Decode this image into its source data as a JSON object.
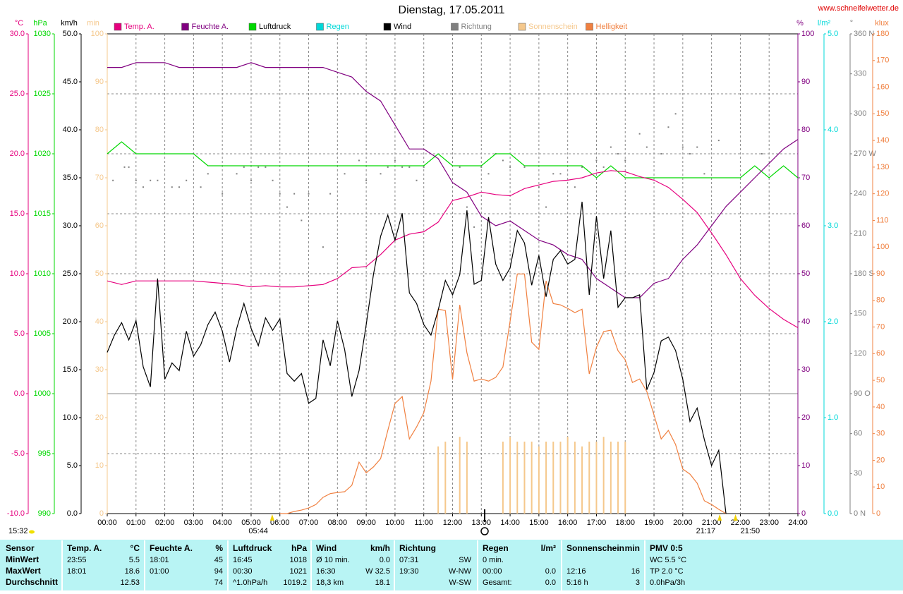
{
  "site": "www.schneifelwetter.de",
  "chart_data": {
    "type": "line",
    "title": "Dienstag, 17.05.2011",
    "grid": true,
    "xlim": [
      0,
      24
    ],
    "xticks": [
      {
        "value": 0,
        "label": "00:00"
      },
      {
        "value": 1,
        "label": "01:00"
      },
      {
        "value": 2,
        "label": "02:00"
      },
      {
        "value": 3,
        "label": "03:00"
      },
      {
        "value": 4,
        "label": "04:00"
      },
      {
        "value": 5,
        "label": "05:00"
      },
      {
        "value": 6,
        "label": "06:00"
      },
      {
        "value": 7,
        "label": "07:00"
      },
      {
        "value": 8,
        "label": "08:00"
      },
      {
        "value": 9,
        "label": "09:00"
      },
      {
        "value": 10,
        "label": "10:00"
      },
      {
        "value": 11,
        "label": "11:00"
      },
      {
        "value": 12,
        "label": "12:00"
      },
      {
        "value": 13,
        "label": "13:00"
      },
      {
        "value": 14,
        "label": "14:00"
      },
      {
        "value": 15,
        "label": "15:00"
      },
      {
        "value": 16,
        "label": "16:00"
      },
      {
        "value": 17,
        "label": "17:00"
      },
      {
        "value": 18,
        "label": "18:00"
      },
      {
        "value": 19,
        "label": "19:00"
      },
      {
        "value": 20,
        "label": "20:00"
      },
      {
        "value": 21,
        "label": "21:00"
      },
      {
        "value": 22,
        "label": "22:00"
      },
      {
        "value": 23,
        "label": "23:00"
      },
      {
        "value": 24,
        "label": "24:00"
      }
    ],
    "x": [
      0,
      0.5,
      1,
      1.5,
      2,
      2.5,
      3,
      3.5,
      4,
      4.5,
      5,
      5.5,
      6,
      6.5,
      7,
      7.5,
      8,
      8.5,
      9,
      9.5,
      10,
      10.5,
      11,
      11.5,
      12,
      12.5,
      13,
      13.5,
      14,
      14.5,
      15,
      15.5,
      16,
      16.5,
      17,
      17.5,
      18,
      18.5,
      19,
      19.5,
      20,
      20.5,
      21,
      21.5,
      22,
      22.5,
      23,
      23.5,
      24
    ],
    "annotations": [
      {
        "x": 5.7333,
        "text": "05:44"
      },
      {
        "x": 21.2833,
        "text": "21:17"
      },
      {
        "x": 21.8333,
        "text": "21:50"
      }
    ],
    "moon_note": "15:32",
    "series": [
      {
        "name": "Temp. A.",
        "type": "line",
        "color": "#e6007e",
        "side": "left",
        "unit": "°C",
        "ylim": [
          -10,
          30
        ],
        "yticks": [
          {
            "value": -10,
            "label": "-10.0"
          },
          {
            "value": -5,
            "label": "-5.0"
          },
          {
            "value": 0,
            "label": "0.0"
          },
          {
            "value": 5,
            "label": "5.0"
          },
          {
            "value": 10,
            "label": "10.0"
          },
          {
            "value": 15,
            "label": "15.0"
          },
          {
            "value": 20,
            "label": "20.0"
          },
          {
            "value": 25,
            "label": "25.0"
          },
          {
            "value": 30,
            "label": "30.0"
          }
        ],
        "values": [
          9.4,
          9.1,
          9.4,
          9.4,
          9.4,
          9.4,
          9.4,
          9.3,
          9.2,
          9.1,
          8.9,
          9.0,
          8.9,
          8.9,
          9.0,
          9.1,
          9.6,
          10.5,
          10.6,
          11.6,
          12.8,
          13.3,
          13.5,
          14.3,
          16.1,
          16.4,
          16.8,
          16.6,
          16.5,
          17.1,
          17.4,
          17.7,
          17.8,
          18.0,
          18.4,
          18.6,
          18.5,
          18.1,
          17.8,
          17.2,
          16.2,
          15.1,
          13.4,
          11.6,
          9.6,
          8.2,
          7.1,
          6.2,
          5.5
        ]
      },
      {
        "name": "Feuchte A.",
        "type": "line",
        "color": "#800080",
        "side": "right",
        "unit": "%",
        "ylim": [
          0,
          100
        ],
        "yticks": [
          0,
          10,
          20,
          30,
          40,
          50,
          60,
          70,
          80,
          90,
          100
        ],
        "values": [
          93,
          93,
          94,
          94,
          94,
          93,
          93,
          93,
          93,
          93,
          94,
          93,
          93,
          93,
          93,
          93,
          92,
          91,
          88,
          86,
          81,
          76,
          76,
          74,
          69,
          67,
          62,
          60,
          61,
          59,
          57,
          56,
          54,
          53,
          49,
          47,
          45,
          45,
          48,
          49,
          53,
          56,
          60,
          64,
          67,
          70,
          73,
          76,
          78
        ]
      },
      {
        "name": "Luftdruck",
        "type": "line",
        "color": "#00d800",
        "side": "left",
        "unit": "hPa",
        "ylim": [
          990,
          1030
        ],
        "yticks": [
          990,
          995,
          1000,
          1005,
          1010,
          1015,
          1020,
          1025,
          1030
        ],
        "values": [
          1020,
          1021,
          1020,
          1020,
          1020,
          1020,
          1020,
          1019,
          1019,
          1019,
          1019,
          1019,
          1019,
          1019,
          1019,
          1019,
          1019,
          1019,
          1019,
          1019,
          1019,
          1019,
          1019,
          1020,
          1019,
          1019,
          1019,
          1020,
          1020,
          1019,
          1019,
          1019,
          1019,
          1019,
          1018,
          1019,
          1018,
          1018,
          1018,
          1018,
          1018,
          1018,
          1018,
          1018,
          1018,
          1019,
          1018,
          1019,
          1018
        ]
      },
      {
        "name": "Regen",
        "type": "bar",
        "color": "#00d8d8",
        "side": "right",
        "unit": "l/m²",
        "ylim": [
          0,
          5
        ],
        "yticks": [
          {
            "value": 0,
            "label": "0.0"
          },
          {
            "value": 1,
            "label": "1.0"
          },
          {
            "value": 2,
            "label": "2.0"
          },
          {
            "value": 3,
            "label": "3.0"
          },
          {
            "value": 4,
            "label": "4.0"
          },
          {
            "value": 5,
            "label": "5.0"
          }
        ],
        "x": [],
        "values": []
      },
      {
        "name": "Wind",
        "type": "line",
        "color": "#000000",
        "side": "left",
        "unit": "km/h",
        "ylim": [
          0,
          50
        ],
        "yticks": [
          {
            "value": 0,
            "label": "0.0"
          },
          {
            "value": 5,
            "label": "5.0"
          },
          {
            "value": 10,
            "label": "10.0"
          },
          {
            "value": 15,
            "label": "15.0"
          },
          {
            "value": 20,
            "label": "20.0"
          },
          {
            "value": 25,
            "label": "25.0"
          },
          {
            "value": 30,
            "label": "30.0"
          },
          {
            "value": 35,
            "label": "35.0"
          },
          {
            "value": 40,
            "label": "40.0"
          },
          {
            "value": 45,
            "label": "45.0"
          },
          {
            "value": 50,
            "label": "50.0"
          }
        ],
        "x": [
          0,
          0.25,
          0.5,
          0.75,
          1,
          1.25,
          1.5,
          1.75,
          2,
          2.25,
          2.5,
          2.75,
          3,
          3.25,
          3.5,
          3.75,
          4,
          4.25,
          4.5,
          4.75,
          5,
          5.25,
          5.5,
          5.75,
          6,
          6.25,
          6.5,
          6.75,
          7,
          7.25,
          7.5,
          7.75,
          8,
          8.25,
          8.5,
          8.75,
          9,
          9.25,
          9.5,
          9.75,
          10,
          10.25,
          10.5,
          10.75,
          11,
          11.25,
          11.5,
          11.75,
          12,
          12.25,
          12.5,
          12.75,
          13,
          13.25,
          13.5,
          13.75,
          14,
          14.25,
          14.5,
          14.75,
          15,
          15.25,
          15.5,
          15.75,
          16,
          16.25,
          16.5,
          16.75,
          17,
          17.25,
          17.5,
          17.75,
          18,
          18.25,
          18.5,
          18.75,
          19,
          19.25,
          19.5,
          19.75,
          20,
          20.25,
          20.5,
          20.75,
          21,
          21.25,
          21.5
        ],
        "values": [
          16.8,
          18.6,
          19.9,
          18.1,
          20.1,
          15.3,
          13.2,
          24.5,
          14.0,
          15.7,
          14.9,
          19.0,
          16.4,
          17.6,
          19.7,
          21.0,
          19.0,
          15.8,
          19.3,
          21.9,
          19.3,
          17.5,
          20.4,
          19.1,
          20.3,
          14.6,
          13.8,
          14.6,
          11.5,
          12.0,
          18.1,
          15.4,
          20.1,
          17.1,
          12.2,
          14.9,
          19.7,
          24.9,
          28.9,
          31.1,
          28.5,
          31.3,
          23.0,
          21.9,
          19.7,
          18.6,
          21.2,
          24.3,
          22.8,
          24.9,
          31.6,
          23.9,
          24.3,
          30.9,
          26.0,
          24.3,
          25.6,
          29.5,
          28.2,
          23.8,
          26.9,
          22.6,
          26.5,
          27.4,
          26.0,
          26.5,
          32.5,
          22.8,
          31.0,
          24.5,
          29.5,
          21.5,
          22.5,
          22.5,
          22.8,
          12.9,
          14.7,
          18.0,
          18.4,
          17.0,
          14.0,
          9.6,
          11.0,
          7.7,
          5.0,
          6.6,
          0.0
        ]
      },
      {
        "name": "Richtung",
        "type": "scatter",
        "color": "#808080",
        "side": "right",
        "unit": "°",
        "ylim": [
          0,
          360
        ],
        "yticks": [
          {
            "value": 0,
            "label": "0 N"
          },
          30,
          60,
          {
            "value": 90,
            "label": "90 O"
          },
          120,
          150,
          {
            "value": 180,
            "label": "180 S"
          },
          210,
          240,
          {
            "value": 270,
            "label": "270 W"
          },
          300,
          330,
          {
            "value": 360,
            "label": "360 N"
          }
        ],
        "x": [
          0.2,
          0.6,
          0.75,
          1.0,
          1.25,
          1.5,
          1.75,
          2.25,
          2.5,
          2.75,
          3.0,
          3.25,
          3.5,
          4.0,
          4.5,
          4.75,
          5.0,
          5.25,
          5.5,
          5.75,
          6.0,
          6.25,
          6.5,
          6.75,
          7.0,
          7.5,
          7.75,
          8.25,
          8.75,
          9.0,
          9.5,
          9.75,
          10.0,
          10.25,
          10.5,
          10.75,
          11.0,
          12.25,
          12.5,
          12.75,
          13.0,
          13.25,
          13.5,
          13.75,
          14.0,
          14.5,
          15.0,
          15.25,
          15.5,
          15.75,
          16.25,
          16.5,
          17.0,
          17.25,
          17.5,
          17.75,
          18.0,
          18.5,
          18.75,
          19.25,
          19.5,
          19.75,
          20.0,
          20.25,
          20.5,
          20.75,
          21.25,
          22.75
        ],
        "values": [
          250,
          260,
          260,
          250,
          245,
          250,
          250,
          245,
          245,
          250,
          270,
          245,
          255,
          240,
          255,
          260,
          250,
          260,
          260,
          250,
          240,
          230,
          240,
          220,
          240,
          200,
          240,
          255,
          265,
          250,
          255,
          260,
          265,
          260,
          260,
          250,
          260,
          260,
          230,
          215,
          260,
          255,
          270,
          265,
          260,
          260,
          245,
          230,
          255,
          255,
          245,
          260,
          265,
          260,
          275,
          270,
          265,
          285,
          275,
          270,
          290,
          300,
          275,
          270,
          275,
          255,
          280,
          270
        ]
      },
      {
        "name": "Sonnenschein",
        "type": "bar",
        "color": "#f5c88c",
        "side": "left",
        "unit": "min",
        "ylim": [
          0,
          100
        ],
        "yticks": [
          0,
          10,
          20,
          30,
          40,
          50,
          60,
          70,
          80,
          90,
          100
        ],
        "x": [
          11.5,
          11.75,
          12.25,
          12.5,
          13.75,
          14.0,
          14.25,
          14.5,
          14.75,
          15.0,
          15.25,
          15.5,
          15.75,
          16.0,
          16.25,
          16.5,
          16.75,
          17.0,
          17.25,
          17.5,
          17.75,
          18.0
        ],
        "values": [
          14,
          15,
          16,
          15,
          15,
          16,
          15,
          15,
          15,
          14,
          15,
          15,
          15,
          16,
          15,
          14,
          15,
          15,
          16,
          15,
          15,
          15
        ]
      },
      {
        "name": "Helligkeit",
        "type": "line",
        "color": "#f08040",
        "side": "right",
        "unit": "klux",
        "ylim": [
          0,
          180
        ],
        "yticks": [
          0,
          10,
          20,
          30,
          40,
          50,
          60,
          70,
          80,
          90,
          100,
          110,
          120,
          130,
          140,
          150,
          160,
          170,
          180
        ],
        "x": [
          6,
          6.25,
          6.5,
          6.75,
          7,
          7.25,
          7.5,
          7.75,
          8,
          8.25,
          8.5,
          8.75,
          9,
          9.25,
          9.5,
          9.75,
          10,
          10.25,
          10.5,
          10.75,
          11,
          11.25,
          11.5,
          11.75,
          12,
          12.25,
          12.5,
          12.75,
          13,
          13.25,
          13.5,
          13.75,
          14,
          14.25,
          14.5,
          14.75,
          15,
          15.25,
          15.5,
          15.75,
          16,
          16.25,
          16.5,
          16.75,
          17,
          17.25,
          17.5,
          17.75,
          18,
          18.25,
          18.5,
          18.75,
          19,
          19.25,
          19.5,
          19.75,
          20,
          20.25,
          20.5,
          20.75,
          21,
          21.25,
          21.5
        ],
        "values": [
          0,
          0,
          0.8,
          1.3,
          2.1,
          3.4,
          6.1,
          7.5,
          7.9,
          8.2,
          10.6,
          19.3,
          15.3,
          17.5,
          20.6,
          31.2,
          41.3,
          43.9,
          28.0,
          32.5,
          37.8,
          49.7,
          76.7,
          76.2,
          50.3,
          78.3,
          60.3,
          49.7,
          50.5,
          49.7,
          51.1,
          55.0,
          72.2,
          89.9,
          89.9,
          64.3,
          61.6,
          87.3,
          78.8,
          78.3,
          77.0,
          75.4,
          76.7,
          52.4,
          62.4,
          68.3,
          68.8,
          61.1,
          57.7,
          49.2,
          50.5,
          45.8,
          37.0,
          28.0,
          31.2,
          25.9,
          16.7,
          14.8,
          11.4,
          4.8,
          3.4,
          1.6,
          0
        ]
      }
    ]
  },
  "table": {
    "columns": [
      [
        "Sensor"
      ],
      [
        "Temp. A.",
        "°C"
      ],
      [
        "Feuchte A.",
        "%"
      ],
      [
        "Luftdruck",
        "hPa"
      ],
      [
        "Wind",
        "km/h"
      ],
      [
        "Richtung"
      ],
      [
        "Regen",
        "l/m²"
      ],
      [
        "Sonnenschein",
        "min"
      ],
      [
        "PMV 0:5"
      ]
    ],
    "rows": [
      {
        "label": "MinWert",
        "cells": [
          [
            "23:55",
            "5.5"
          ],
          [
            "18:01",
            "45"
          ],
          [
            "16:45",
            "1018"
          ],
          [
            "Ø 10 min.",
            "0.0"
          ],
          [
            "07:31",
            "SW"
          ],
          [
            "0 min.",
            null
          ],
          [
            null,
            null
          ],
          [
            "WC 5.5 °C"
          ]
        ]
      },
      {
        "label": "MaxWert",
        "cells": [
          [
            "18:01",
            "18.6"
          ],
          [
            "01:00",
            "94"
          ],
          [
            "00:30",
            "1021"
          ],
          [
            "16:30",
            "W 32.5"
          ],
          [
            "19:30",
            "W-NW"
          ],
          [
            "00:00",
            "0.0"
          ],
          [
            "12:16",
            "16"
          ],
          [
            "TP 2.0 °C"
          ]
        ]
      },
      {
        "label": "Durchschnitt",
        "cells": [
          [
            null,
            "12.53"
          ],
          [
            null,
            "74"
          ],
          [
            "^1.0hPa/h",
            "1019.2"
          ],
          [
            "18,3 km",
            "18.1"
          ],
          [
            null,
            "W-SW"
          ],
          [
            "Gesamt:",
            "0.0"
          ],
          [
            "5:16 h",
            "3"
          ],
          [
            "0.0hPa/3h"
          ]
        ]
      }
    ]
  }
}
